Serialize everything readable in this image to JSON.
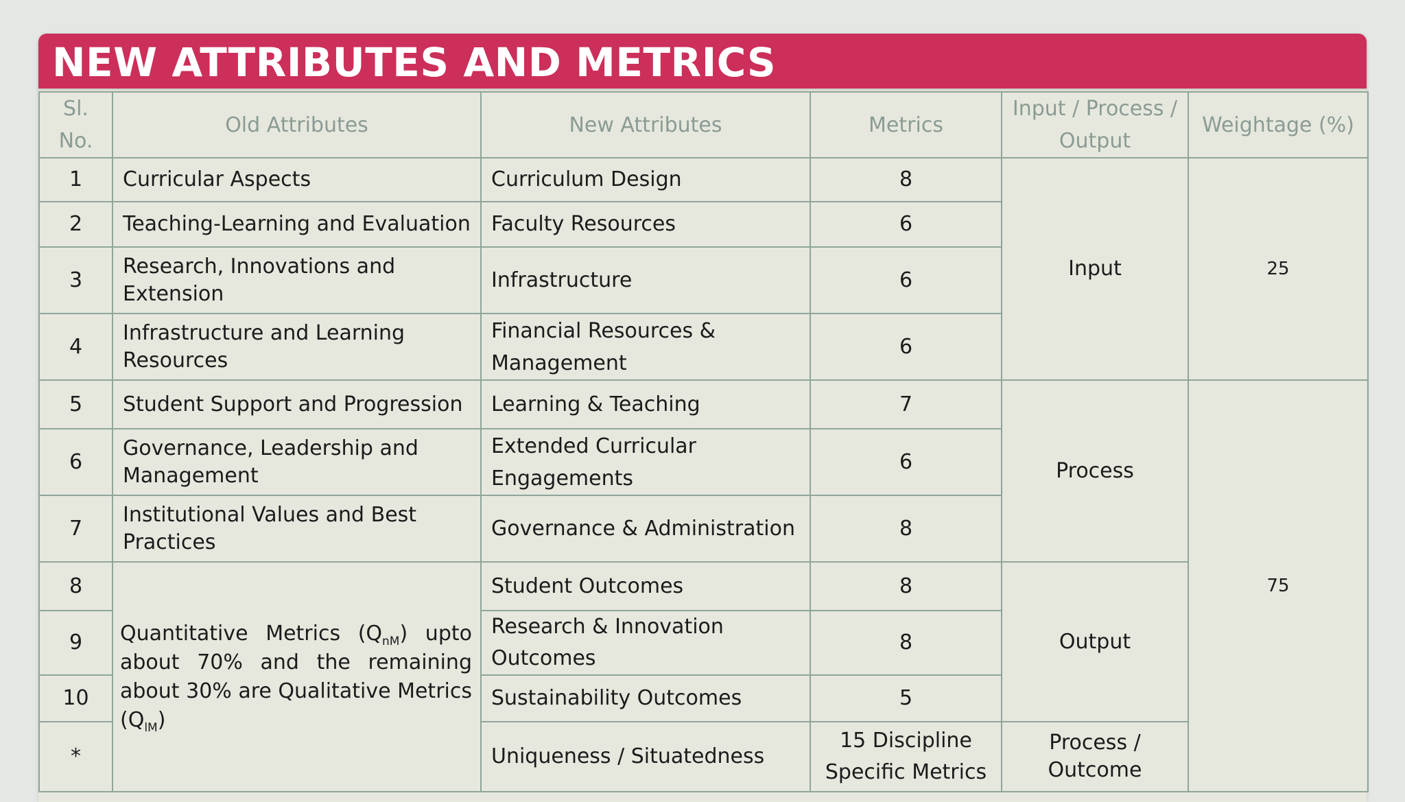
{
  "title": "NEW ATTRIBUTES AND METRICS",
  "headers": {
    "sl_no": "Sl. No.",
    "old_attributes": "Old Attributes",
    "new_attributes": "New Attributes",
    "metrics": "Metrics",
    "ipo": "Input / Process / Output",
    "weightage": "Weightage (%)"
  },
  "rows": [
    {
      "sl": "1",
      "old": "Curricular Aspects",
      "new": "Curriculum Design",
      "metrics": "8"
    },
    {
      "sl": "2",
      "old": "Teaching-Learning and Evaluation",
      "new": "Faculty Resources",
      "metrics": "6"
    },
    {
      "sl": "3",
      "old": "Research, Innovations and Extension",
      "new": "Infrastructure",
      "metrics": "6"
    },
    {
      "sl": "4",
      "old": "Infrastructure and Learning Resources",
      "new": "Financial Resources & Management",
      "metrics": "6"
    },
    {
      "sl": "5",
      "old": "Student Support and Progression",
      "new": "Learning & Teaching",
      "metrics": "7"
    },
    {
      "sl": "6",
      "old": "Governance, Leadership and Management",
      "new": "Extended Curricular Engagements",
      "metrics": "6"
    },
    {
      "sl": "7",
      "old": "Institutional Values and Best Practices",
      "new": "Governance & Administration",
      "metrics": "8"
    },
    {
      "sl": "8",
      "new": "Student Outcomes",
      "metrics": "8"
    },
    {
      "sl": "9",
      "new": "Research & Innovation Outcomes",
      "metrics": "8"
    },
    {
      "sl": "10",
      "new": "Sustainability Outcomes",
      "metrics": "5"
    },
    {
      "sl": "*",
      "new": "Uniqueness / Situatedness",
      "metrics": "15 Discipline Specific Metrics"
    }
  ],
  "merged": {
    "quantitative_note": {
      "text_1": "Quantitative Metrics (Q",
      "sub_1": "nM",
      "text_2": ") upto about 70% and the remaining about 30% are Qualitative Metrics (Q",
      "sub_2": "lM",
      "text_3": ")"
    },
    "ipo_input": "Input",
    "ipo_process": "Process",
    "ipo_output": "Output",
    "ipo_last": "Process / Outcome",
    "weightage_input": "25",
    "weightage_rest": "75"
  }
}
